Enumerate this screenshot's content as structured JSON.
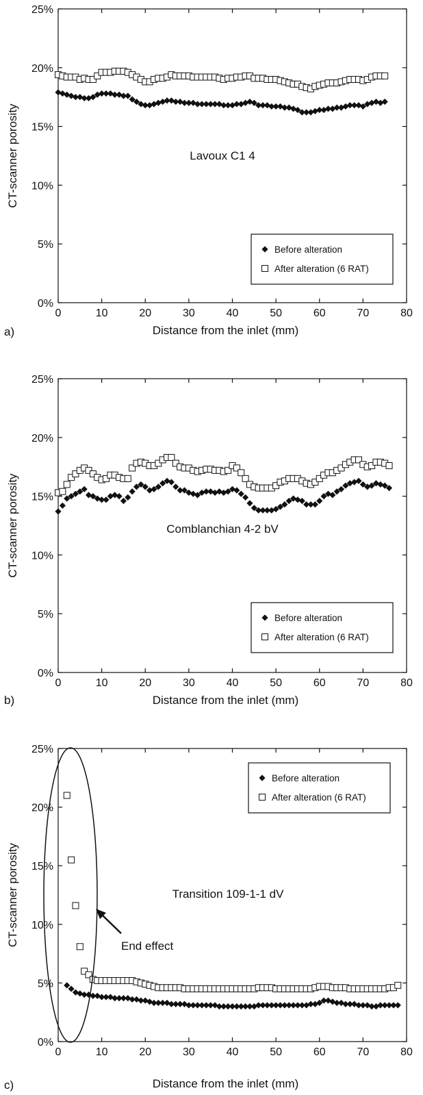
{
  "chart_data": [
    {
      "type": "scatter",
      "panel_label": "a)",
      "title": "Lavoux C1 4",
      "xlabel": "Distance from the inlet (mm)",
      "ylabel": "CT-scanner porosity",
      "xlim": [
        0,
        80
      ],
      "ylim": [
        0,
        25
      ],
      "x_ticks": [
        "0",
        "10",
        "20",
        "30",
        "40",
        "50",
        "60",
        "70",
        "80"
      ],
      "y_ticks": [
        "0%",
        "5%",
        "10%",
        "15%",
        "20%",
        "25%"
      ],
      "legend_position": "bottom-right",
      "series": [
        {
          "name": "Before alteration",
          "marker": "diamond-filled",
          "x": [
            0,
            1,
            2,
            3,
            4,
            5,
            6,
            7,
            8,
            9,
            10,
            11,
            12,
            13,
            14,
            15,
            16,
            17,
            18,
            19,
            20,
            21,
            22,
            23,
            24,
            25,
            26,
            27,
            28,
            29,
            30,
            31,
            32,
            33,
            34,
            35,
            36,
            37,
            38,
            39,
            40,
            41,
            42,
            43,
            44,
            45,
            46,
            47,
            48,
            49,
            50,
            51,
            52,
            53,
            54,
            55,
            56,
            57,
            58,
            59,
            60,
            61,
            62,
            63,
            64,
            65,
            66,
            67,
            68,
            69,
            70,
            71,
            72,
            73,
            74,
            75
          ],
          "y": [
            17.9,
            17.8,
            17.7,
            17.6,
            17.5,
            17.5,
            17.4,
            17.4,
            17.5,
            17.7,
            17.8,
            17.8,
            17.8,
            17.7,
            17.7,
            17.6,
            17.6,
            17.3,
            17.1,
            16.9,
            16.8,
            16.8,
            16.9,
            17.0,
            17.1,
            17.2,
            17.2,
            17.1,
            17.1,
            17.0,
            17.0,
            17.0,
            16.9,
            16.9,
            16.9,
            16.9,
            16.9,
            16.9,
            16.8,
            16.8,
            16.8,
            16.9,
            16.9,
            17.0,
            17.1,
            17.0,
            16.8,
            16.8,
            16.8,
            16.7,
            16.7,
            16.7,
            16.6,
            16.6,
            16.5,
            16.4,
            16.2,
            16.2,
            16.2,
            16.3,
            16.4,
            16.4,
            16.5,
            16.5,
            16.6,
            16.6,
            16.7,
            16.8,
            16.8,
            16.8,
            16.7,
            16.9,
            17.0,
            17.1,
            17.0,
            17.1
          ]
        },
        {
          "name": "After alteration (6 RAT)",
          "marker": "square-open",
          "x": [
            0,
            1,
            2,
            3,
            4,
            5,
            6,
            7,
            8,
            9,
            10,
            11,
            12,
            13,
            14,
            15,
            16,
            17,
            18,
            19,
            20,
            21,
            22,
            23,
            24,
            25,
            26,
            27,
            28,
            29,
            30,
            31,
            32,
            33,
            34,
            35,
            36,
            37,
            38,
            39,
            40,
            41,
            42,
            43,
            44,
            45,
            46,
            47,
            48,
            49,
            50,
            51,
            52,
            53,
            54,
            55,
            56,
            57,
            58,
            59,
            60,
            61,
            62,
            63,
            64,
            65,
            66,
            67,
            68,
            69,
            70,
            71,
            72,
            73,
            74,
            75
          ],
          "y": [
            19.4,
            19.3,
            19.2,
            19.2,
            19.2,
            19.0,
            19.1,
            19.0,
            19.0,
            19.3,
            19.6,
            19.6,
            19.6,
            19.7,
            19.7,
            19.7,
            19.6,
            19.4,
            19.2,
            19.0,
            18.8,
            18.8,
            19.0,
            19.1,
            19.1,
            19.2,
            19.4,
            19.3,
            19.3,
            19.3,
            19.3,
            19.2,
            19.2,
            19.2,
            19.2,
            19.2,
            19.2,
            19.1,
            19.0,
            19.1,
            19.1,
            19.2,
            19.2,
            19.3,
            19.3,
            19.1,
            19.1,
            19.1,
            19.0,
            19.0,
            19.0,
            18.9,
            18.8,
            18.7,
            18.6,
            18.6,
            18.4,
            18.3,
            18.2,
            18.4,
            18.5,
            18.6,
            18.7,
            18.7,
            18.7,
            18.8,
            18.9,
            19.0,
            19.0,
            19.0,
            18.9,
            19.0,
            19.2,
            19.3,
            19.3,
            19.3
          ]
        }
      ]
    },
    {
      "type": "scatter",
      "panel_label": "b)",
      "title": "Comblanchian 4-2 bV",
      "xlabel": "Distance from the inlet (mm)",
      "ylabel": "CT-scanner porosity",
      "xlim": [
        0,
        80
      ],
      "ylim": [
        0,
        25
      ],
      "x_ticks": [
        "0",
        "10",
        "20",
        "30",
        "40",
        "50",
        "60",
        "70",
        "80"
      ],
      "y_ticks": [
        "0%",
        "5%",
        "10%",
        "15%",
        "20%",
        "25%"
      ],
      "legend_position": "bottom-right",
      "series": [
        {
          "name": "Before alteration",
          "marker": "diamond-filled",
          "x": [
            0,
            1,
            2,
            3,
            4,
            5,
            6,
            7,
            8,
            9,
            10,
            11,
            12,
            13,
            14,
            15,
            16,
            17,
            18,
            19,
            20,
            21,
            22,
            23,
            24,
            25,
            26,
            27,
            28,
            29,
            30,
            31,
            32,
            33,
            34,
            35,
            36,
            37,
            38,
            39,
            40,
            41,
            42,
            43,
            44,
            45,
            46,
            47,
            48,
            49,
            50,
            51,
            52,
            53,
            54,
            55,
            56,
            57,
            58,
            59,
            60,
            61,
            62,
            63,
            64,
            65,
            66,
            67,
            68,
            69,
            70,
            71,
            72,
            73,
            74,
            75,
            76
          ],
          "y": [
            13.7,
            14.2,
            14.8,
            15.0,
            15.2,
            15.4,
            15.6,
            15.1,
            15.0,
            14.8,
            14.7,
            14.7,
            15.0,
            15.1,
            15.0,
            14.6,
            14.9,
            15.4,
            15.8,
            16.0,
            15.8,
            15.5,
            15.6,
            15.8,
            16.1,
            16.3,
            16.2,
            15.8,
            15.5,
            15.5,
            15.3,
            15.2,
            15.1,
            15.3,
            15.4,
            15.4,
            15.3,
            15.4,
            15.3,
            15.4,
            15.6,
            15.5,
            15.2,
            14.9,
            14.4,
            14.0,
            13.8,
            13.8,
            13.8,
            13.8,
            13.9,
            14.1,
            14.3,
            14.6,
            14.8,
            14.7,
            14.6,
            14.3,
            14.3,
            14.3,
            14.6,
            15.0,
            15.2,
            15.1,
            15.4,
            15.6,
            15.9,
            16.1,
            16.2,
            16.3,
            16.0,
            15.8,
            15.9,
            16.1,
            16.0,
            15.9,
            15.7
          ]
        },
        {
          "name": "After alteration (6 RAT)",
          "marker": "square-open",
          "x": [
            0,
            1,
            2,
            3,
            4,
            5,
            6,
            7,
            8,
            9,
            10,
            11,
            12,
            13,
            14,
            15,
            16,
            17,
            18,
            19,
            20,
            21,
            22,
            23,
            24,
            25,
            26,
            27,
            28,
            29,
            30,
            31,
            32,
            33,
            34,
            35,
            36,
            37,
            38,
            39,
            40,
            41,
            42,
            43,
            44,
            45,
            46,
            47,
            48,
            49,
            50,
            51,
            52,
            53,
            54,
            55,
            56,
            57,
            58,
            59,
            60,
            61,
            62,
            63,
            64,
            65,
            66,
            67,
            68,
            69,
            70,
            71,
            72,
            73,
            74,
            75,
            76
          ],
          "y": [
            15.3,
            15.4,
            16.0,
            16.6,
            16.9,
            17.2,
            17.4,
            17.2,
            16.9,
            16.6,
            16.4,
            16.5,
            16.8,
            16.8,
            16.6,
            16.5,
            16.5,
            17.4,
            17.8,
            17.9,
            17.8,
            17.6,
            17.6,
            17.8,
            18.1,
            18.3,
            18.3,
            17.8,
            17.5,
            17.4,
            17.4,
            17.2,
            17.1,
            17.2,
            17.3,
            17.3,
            17.2,
            17.2,
            17.1,
            17.2,
            17.6,
            17.4,
            17.0,
            16.5,
            16.0,
            15.8,
            15.7,
            15.7,
            15.7,
            15.7,
            15.9,
            16.2,
            16.3,
            16.5,
            16.5,
            16.5,
            16.3,
            16.1,
            16.0,
            16.2,
            16.5,
            16.8,
            17.0,
            17.0,
            17.2,
            17.4,
            17.7,
            17.9,
            18.1,
            18.1,
            17.7,
            17.5,
            17.6,
            17.9,
            17.9,
            17.8,
            17.6
          ]
        }
      ]
    },
    {
      "type": "scatter",
      "panel_label": "c)",
      "title": "Transition 109-1-1 dV",
      "xlabel": "Distance from the inlet (mm)",
      "ylabel": "CT-scanner porosity",
      "xlim": [
        0,
        80
      ],
      "ylim": [
        0,
        25
      ],
      "x_ticks": [
        "0",
        "10",
        "20",
        "30",
        "40",
        "50",
        "60",
        "70",
        "80"
      ],
      "y_ticks": [
        "0%",
        "5%",
        "10%",
        "15%",
        "20%",
        "25%"
      ],
      "legend_position": "top-right",
      "annotation": "End effect",
      "series": [
        {
          "name": "Before alteration",
          "marker": "diamond-filled",
          "x": [
            2,
            3,
            4,
            5,
            6,
            7,
            8,
            9,
            10,
            11,
            12,
            13,
            14,
            15,
            16,
            17,
            18,
            19,
            20,
            21,
            22,
            23,
            24,
            25,
            26,
            27,
            28,
            29,
            30,
            31,
            32,
            33,
            34,
            35,
            36,
            37,
            38,
            39,
            40,
            41,
            42,
            43,
            44,
            45,
            46,
            47,
            48,
            49,
            50,
            51,
            52,
            53,
            54,
            55,
            56,
            57,
            58,
            59,
            60,
            61,
            62,
            63,
            64,
            65,
            66,
            67,
            68,
            69,
            70,
            71,
            72,
            73,
            74,
            75,
            76,
            77,
            78
          ],
          "y": [
            4.8,
            4.5,
            4.2,
            4.1,
            4.0,
            4.0,
            3.9,
            3.9,
            3.8,
            3.8,
            3.8,
            3.7,
            3.7,
            3.7,
            3.7,
            3.6,
            3.6,
            3.5,
            3.5,
            3.4,
            3.3,
            3.3,
            3.3,
            3.3,
            3.2,
            3.2,
            3.2,
            3.2,
            3.1,
            3.1,
            3.1,
            3.1,
            3.1,
            3.1,
            3.1,
            3.0,
            3.0,
            3.0,
            3.0,
            3.0,
            3.0,
            3.0,
            3.0,
            3.0,
            3.1,
            3.1,
            3.1,
            3.1,
            3.1,
            3.1,
            3.1,
            3.1,
            3.1,
            3.1,
            3.1,
            3.1,
            3.2,
            3.2,
            3.3,
            3.5,
            3.5,
            3.4,
            3.3,
            3.3,
            3.2,
            3.2,
            3.2,
            3.1,
            3.1,
            3.1,
            3.0,
            3.0,
            3.1,
            3.1,
            3.1,
            3.1,
            3.1
          ]
        },
        {
          "name": "After alteration (6 RAT)",
          "marker": "square-open",
          "x": [
            2,
            3,
            4,
            5,
            6,
            7,
            8,
            9,
            10,
            11,
            12,
            13,
            14,
            15,
            16,
            17,
            18,
            19,
            20,
            21,
            22,
            23,
            24,
            25,
            26,
            27,
            28,
            29,
            30,
            31,
            32,
            33,
            34,
            35,
            36,
            37,
            38,
            39,
            40,
            41,
            42,
            43,
            44,
            45,
            46,
            47,
            48,
            49,
            50,
            51,
            52,
            53,
            54,
            55,
            56,
            57,
            58,
            59,
            60,
            61,
            62,
            63,
            64,
            65,
            66,
            67,
            68,
            69,
            70,
            71,
            72,
            73,
            74,
            75,
            76,
            77,
            78
          ],
          "y": [
            21.0,
            15.5,
            11.6,
            8.1,
            6.0,
            5.7,
            5.3,
            5.2,
            5.2,
            5.2,
            5.2,
            5.2,
            5.2,
            5.2,
            5.2,
            5.2,
            5.1,
            5.0,
            4.9,
            4.8,
            4.7,
            4.6,
            4.6,
            4.6,
            4.6,
            4.6,
            4.6,
            4.5,
            4.5,
            4.5,
            4.5,
            4.5,
            4.5,
            4.5,
            4.5,
            4.5,
            4.5,
            4.5,
            4.5,
            4.5,
            4.5,
            4.5,
            4.5,
            4.5,
            4.6,
            4.6,
            4.6,
            4.6,
            4.5,
            4.5,
            4.5,
            4.5,
            4.5,
            4.5,
            4.5,
            4.5,
            4.5,
            4.6,
            4.7,
            4.7,
            4.7,
            4.6,
            4.6,
            4.6,
            4.6,
            4.5,
            4.5,
            4.5,
            4.5,
            4.5,
            4.5,
            4.5,
            4.5,
            4.5,
            4.6,
            4.6,
            4.8
          ]
        }
      ]
    }
  ]
}
